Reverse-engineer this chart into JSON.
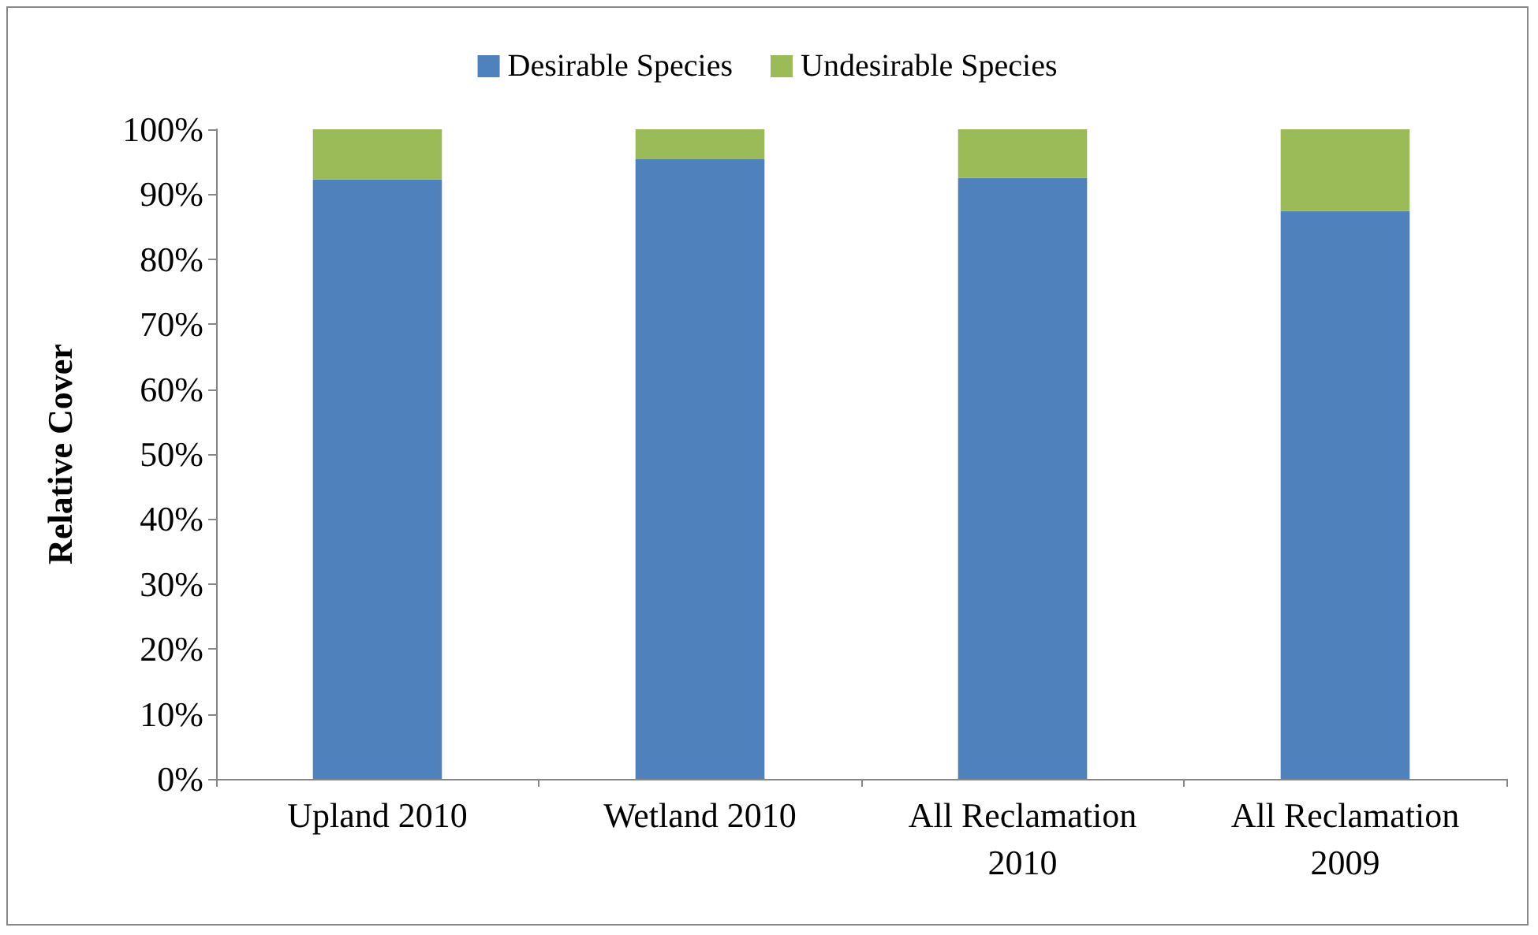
{
  "chart_data": {
    "type": "bar",
    "stacked": true,
    "ylabel": "Relative Cover",
    "categories": [
      "Upland 2010",
      "Wetland 2010",
      "All Reclamation\n2010",
      "All Reclamation\n2009"
    ],
    "series": [
      {
        "name": "Desirable Species",
        "color": "#4f81bd",
        "values": [
          92.3,
          95.4,
          92.5,
          87.4
        ]
      },
      {
        "name": "Undesirable Species",
        "color": "#9bbb59",
        "values": [
          7.7,
          4.6,
          7.5,
          12.6
        ]
      }
    ],
    "ylim": [
      0,
      100
    ],
    "yticks": [
      {
        "value": 0,
        "label": "0%"
      },
      {
        "value": 10,
        "label": "10%"
      },
      {
        "value": 20,
        "label": "20%"
      },
      {
        "value": 30,
        "label": "30%"
      },
      {
        "value": 40,
        "label": "40%"
      },
      {
        "value": 50,
        "label": "50%"
      },
      {
        "value": 60,
        "label": "60%"
      },
      {
        "value": 70,
        "label": "70%"
      },
      {
        "value": 80,
        "label": "80%"
      },
      {
        "value": 90,
        "label": "90%"
      },
      {
        "value": 100,
        "label": "100%"
      }
    ],
    "grid": false,
    "legend": "top"
  }
}
